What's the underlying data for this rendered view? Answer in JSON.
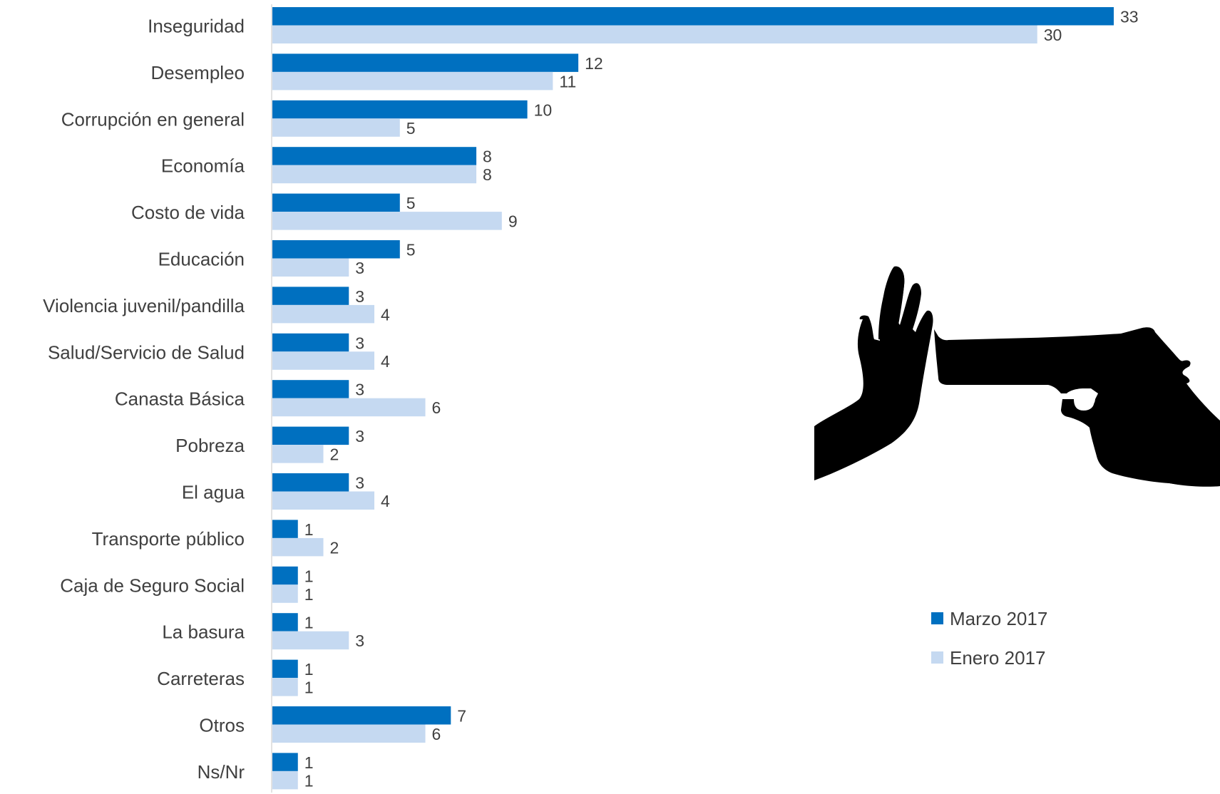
{
  "chart_data": {
    "type": "bar",
    "orientation": "horizontal",
    "categories": [
      "Inseguridad",
      "Desempleo",
      "Corrupción en general",
      "Economía",
      "Costo de vida",
      "Educación",
      "Violencia juvenil/pandilla",
      "Salud/Servicio de Salud",
      "Canasta Básica",
      "Pobreza",
      "El agua",
      "Transporte público",
      "Caja de Seguro Social",
      "La basura",
      "Carreteras",
      "Otros",
      "Ns/Nr"
    ],
    "series": [
      {
        "name": "Marzo 2017",
        "color": "#0070C0",
        "values": [
          33,
          12,
          10,
          8,
          5,
          5,
          3,
          3,
          3,
          3,
          3,
          1,
          1,
          1,
          1,
          7,
          1
        ]
      },
      {
        "name": "Enero 2017",
        "color": "#C5D9F1",
        "values": [
          30,
          11,
          5,
          8,
          9,
          3,
          4,
          4,
          6,
          2,
          4,
          2,
          1,
          3,
          1,
          6,
          1
        ]
      }
    ],
    "xlim": [
      0,
      33
    ],
    "grid": false,
    "legend_position": "right",
    "data_labels": true
  },
  "illustration": {
    "description_icon": "hand-stopping-gun-icon",
    "color": "#000000"
  }
}
